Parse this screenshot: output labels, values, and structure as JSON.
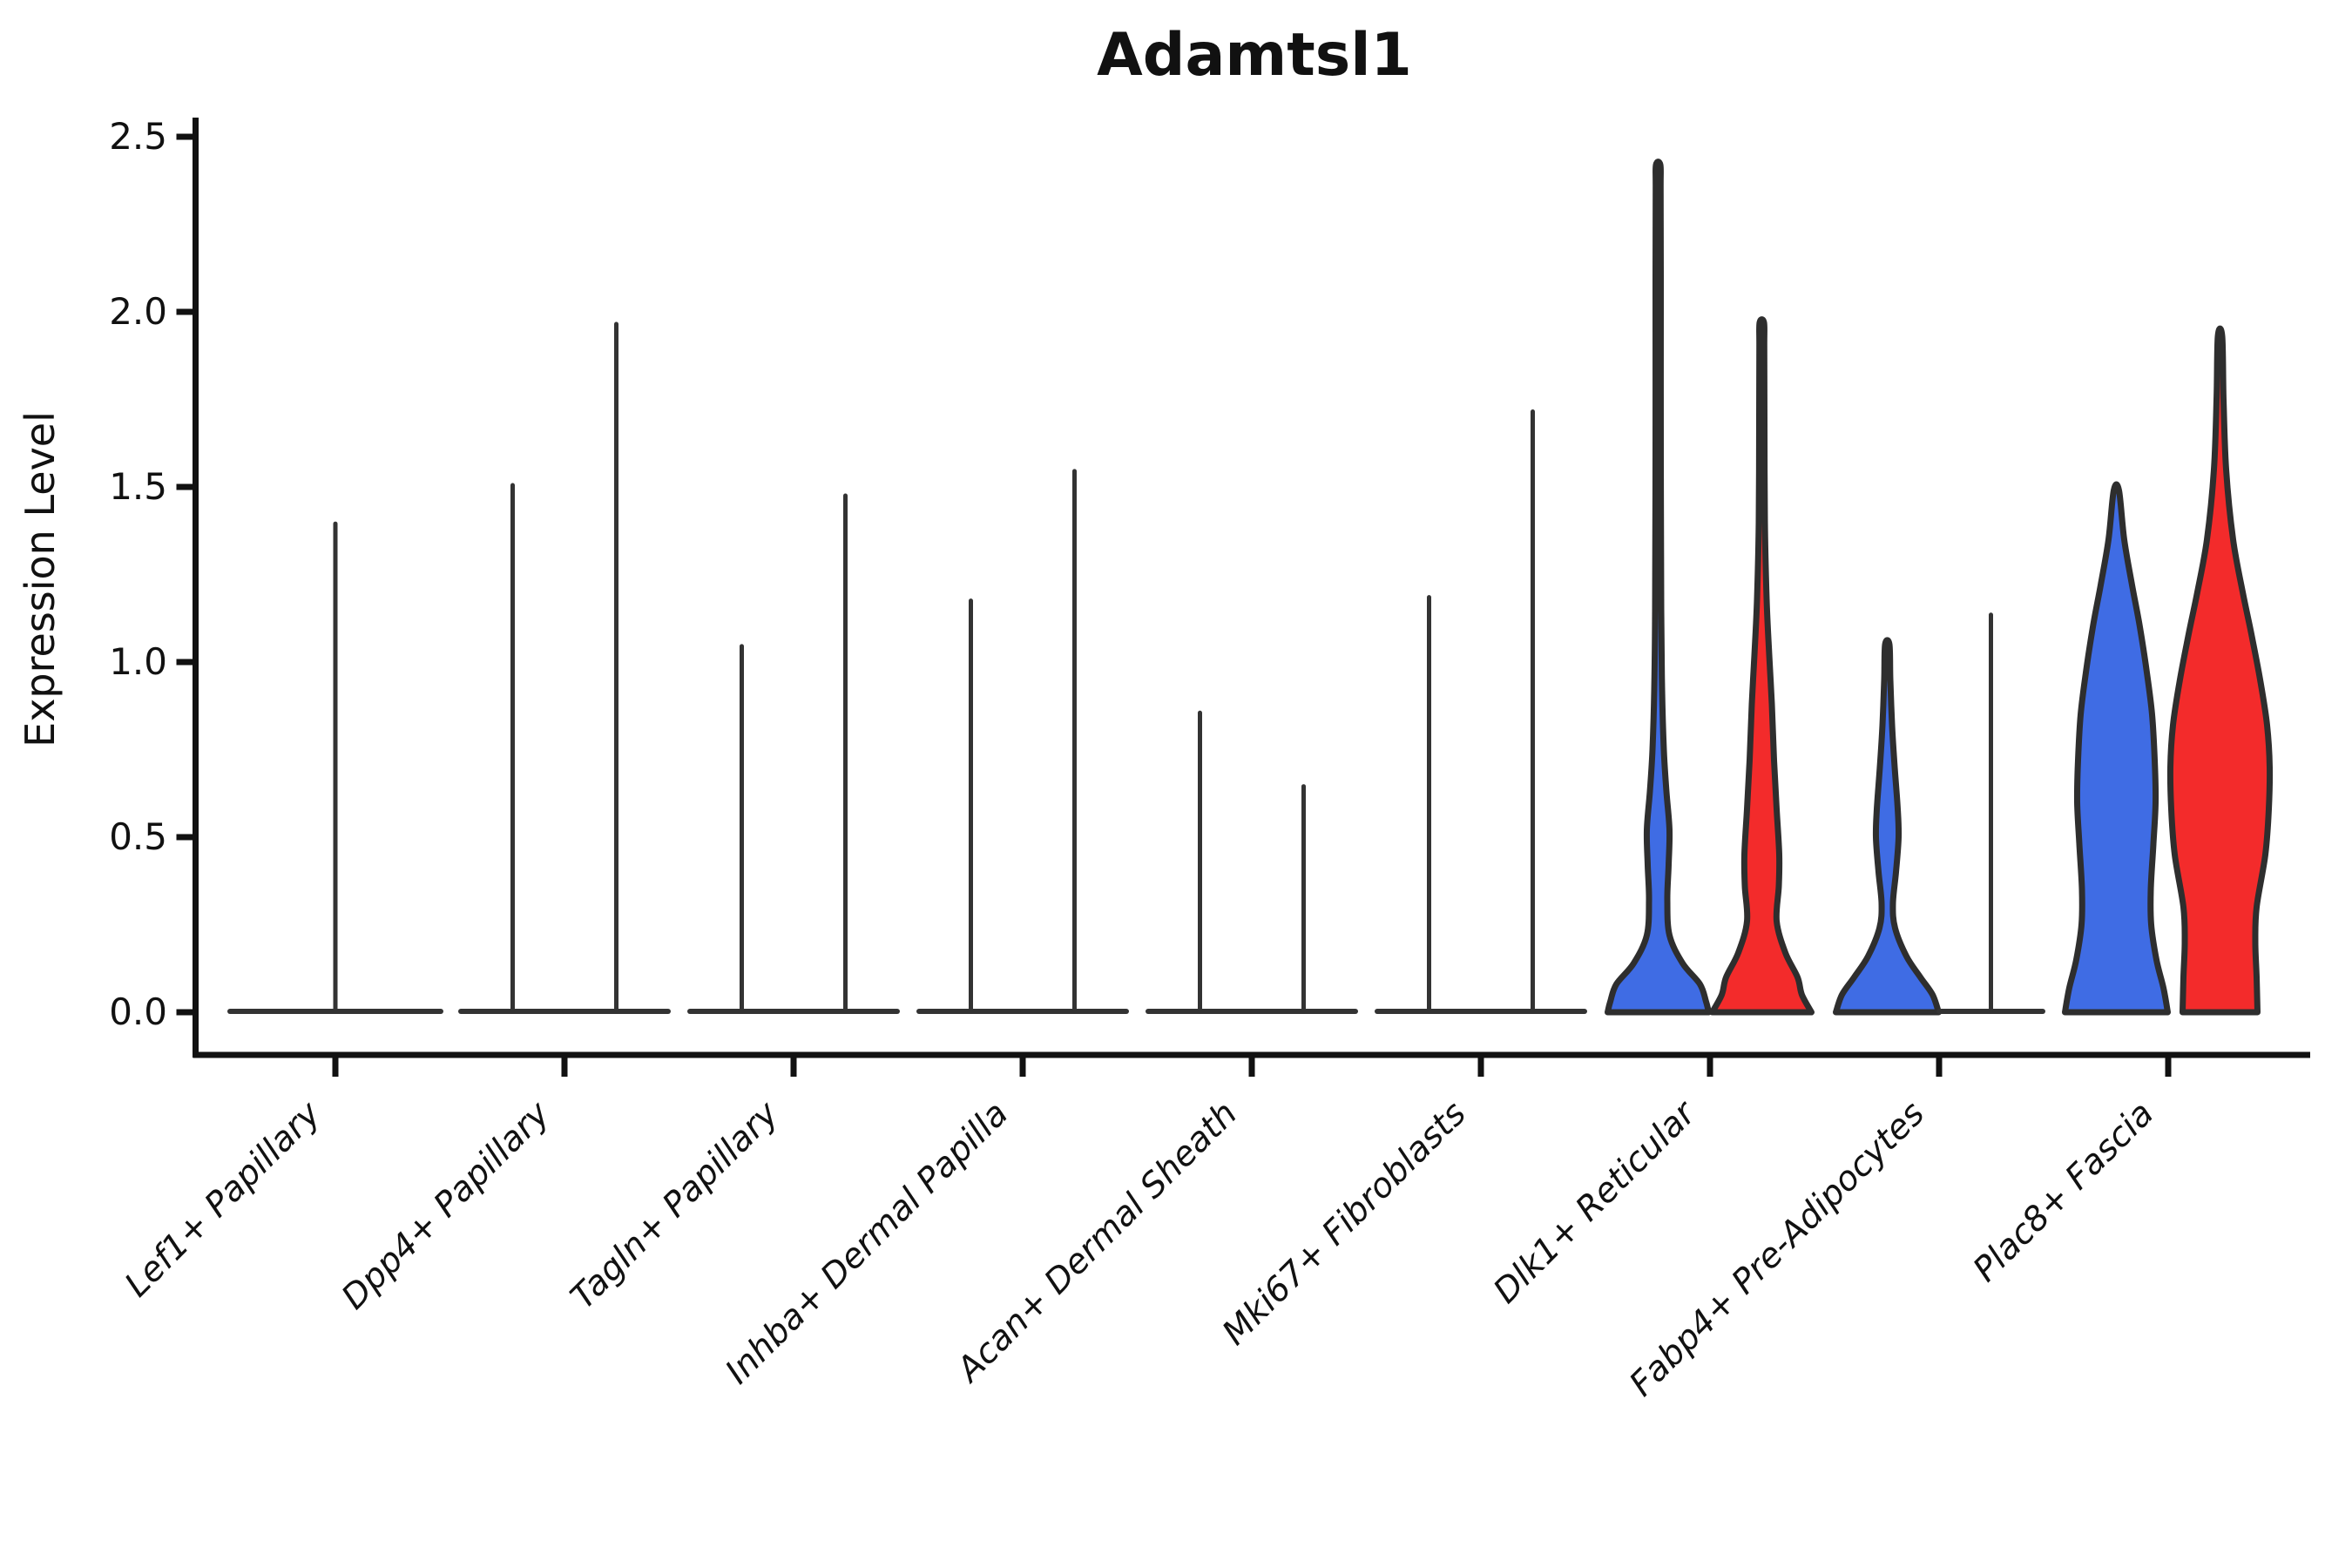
{
  "chart_data": {
    "type": "violin",
    "title": "Adamtsl1",
    "ylabel": "Expression Level",
    "xlabel": "",
    "ytick_labels": [
      "0.0",
      "0.5",
      "1.0",
      "1.5",
      "2.0",
      "2.5"
    ],
    "ytick_values": [
      0.0,
      0.5,
      1.0,
      1.5,
      2.0,
      2.5
    ],
    "ylim": [
      -0.12,
      2.56
    ],
    "x_tick_rotation": 45,
    "grid": false,
    "legend": null,
    "colors": {
      "blue": "#3f6ce4",
      "red": "#f32b2b",
      "ink": "#111111",
      "violin_edge": "#2e2e2e",
      "spike": "#333333"
    },
    "categories": [
      "Lef1+ Papillary",
      "Dpp4+ Papillary",
      "Tagln+ Papillary",
      "Inhba+ Dermal Papilla",
      "Acan+ Dermal Sheath",
      "Mki67+ Fibroblasts",
      "Dlk1+ Reticular",
      "Fabp4+ Pre-Adipocytes",
      "Plac8+ Fascia"
    ],
    "groups": [
      {
        "category": "Lef1+ Papillary",
        "violins": [
          {
            "style": "spike",
            "color": "spike",
            "offset": 0,
            "max": 1.4,
            "base_halfwidth": 121
          }
        ]
      },
      {
        "category": "Dpp4+ Papillary",
        "violins": [
          {
            "style": "spike",
            "color": "spike",
            "offset": -59.5,
            "max": 1.51,
            "base_halfwidth": 59.5
          },
          {
            "style": "spike",
            "color": "spike",
            "offset": 59.5,
            "max": 1.97,
            "base_halfwidth": 59.5
          }
        ]
      },
      {
        "category": "Tagln+ Papillary",
        "violins": [
          {
            "style": "spike",
            "color": "spike",
            "offset": -59.5,
            "max": 1.05,
            "base_halfwidth": 59.5
          },
          {
            "style": "spike",
            "color": "spike",
            "offset": 59.5,
            "max": 1.48,
            "base_halfwidth": 59.5
          }
        ]
      },
      {
        "category": "Inhba+ Dermal Papilla",
        "violins": [
          {
            "style": "spike",
            "color": "spike",
            "offset": -59.5,
            "max": 1.18,
            "base_halfwidth": 59.5
          },
          {
            "style": "spike",
            "color": "spike",
            "offset": 59.5,
            "max": 1.55,
            "base_halfwidth": 59.5
          }
        ]
      },
      {
        "category": "Acan+ Dermal Sheath",
        "violins": [
          {
            "style": "spike",
            "color": "spike",
            "offset": -59.5,
            "max": 0.86,
            "base_halfwidth": 59.5
          },
          {
            "style": "spike",
            "color": "spike",
            "offset": 59.5,
            "max": 0.65,
            "base_halfwidth": 59.5
          }
        ]
      },
      {
        "category": "Mki67+ Fibroblasts",
        "violins": [
          {
            "style": "spike",
            "color": "spike",
            "offset": -59.5,
            "max": 1.19,
            "base_halfwidth": 59.5
          },
          {
            "style": "spike",
            "color": "spike",
            "offset": 59.5,
            "max": 1.72,
            "base_halfwidth": 59.5
          }
        ]
      },
      {
        "category": "Dlk1+ Reticular",
        "violins": [
          {
            "style": "violin",
            "color": "blue",
            "offset": -59.5,
            "max": 2.42,
            "profile": [
              [
                0,
                58
              ],
              [
                0.03,
                55
              ],
              [
                0.08,
                48
              ],
              [
                0.14,
                28
              ],
              [
                0.22,
                13
              ],
              [
                0.32,
                10.5
              ],
              [
                0.42,
                12
              ],
              [
                0.52,
                13
              ],
              [
                0.63,
                9.5
              ],
              [
                0.75,
                6.5
              ],
              [
                0.92,
                4.5
              ],
              [
                1.15,
                3.5
              ],
              [
                1.6,
                3
              ],
              [
                2.1,
                3
              ],
              [
                2.35,
                2.8
              ],
              [
                2.42,
                2.5
              ]
            ]
          },
          {
            "style": "violin",
            "color": "red",
            "offset": 59.5,
            "max": 1.97,
            "profile": [
              [
                0,
                57
              ],
              [
                0.05,
                46
              ],
              [
                0.1,
                41
              ],
              [
                0.17,
                27
              ],
              [
                0.26,
                17
              ],
              [
                0.36,
                19.5
              ],
              [
                0.45,
                20
              ],
              [
                0.58,
                17
              ],
              [
                0.72,
                14
              ],
              [
                0.88,
                11.5
              ],
              [
                1.02,
                8.5
              ],
              [
                1.18,
                5.5
              ],
              [
                1.4,
                3.5
              ],
              [
                1.7,
                3
              ],
              [
                1.9,
                2.8
              ],
              [
                1.97,
                2.5
              ]
            ]
          }
        ]
      },
      {
        "category": "Fabp4+ Pre-Adipocytes",
        "violins": [
          {
            "style": "violin",
            "color": "blue",
            "offset": -59.5,
            "max": 1.05,
            "profile": [
              [
                0,
                59
              ],
              [
                0.05,
                52
              ],
              [
                0.1,
                38
              ],
              [
                0.16,
                22
              ],
              [
                0.24,
                9
              ],
              [
                0.31,
                6.5
              ],
              [
                0.4,
                10
              ],
              [
                0.5,
                13
              ],
              [
                0.58,
                12
              ],
              [
                0.7,
                8.5
              ],
              [
                0.82,
                5.5
              ],
              [
                0.95,
                3.5
              ],
              [
                1.05,
                2.5
              ]
            ]
          },
          {
            "style": "spike",
            "color": "spike",
            "offset": 59.5,
            "max": 1.14,
            "base_halfwidth": 59.5
          }
        ]
      },
      {
        "category": "Plac8+ Fascia",
        "violins": [
          {
            "style": "violin",
            "color": "blue",
            "offset": -59.5,
            "max": 1.49,
            "profile": [
              [
                0,
                59
              ],
              [
                0.07,
                54
              ],
              [
                0.15,
                46
              ],
              [
                0.25,
                40
              ],
              [
                0.35,
                39.5
              ],
              [
                0.48,
                42.5
              ],
              [
                0.6,
                45
              ],
              [
                0.72,
                44
              ],
              [
                0.85,
                41
              ],
              [
                0.97,
                35
              ],
              [
                1.1,
                27
              ],
              [
                1.22,
                18
              ],
              [
                1.35,
                9
              ],
              [
                1.49,
                3
              ]
            ]
          },
          {
            "style": "violin",
            "color": "red",
            "offset": 59.5,
            "max": 1.93,
            "profile": [
              [
                0,
                43
              ],
              [
                0.1,
                42
              ],
              [
                0.2,
                40.5
              ],
              [
                0.3,
                42
              ],
              [
                0.45,
                52
              ],
              [
                0.58,
                56
              ],
              [
                0.7,
                57
              ],
              [
                0.82,
                54
              ],
              [
                0.95,
                46
              ],
              [
                1.08,
                36
              ],
              [
                1.2,
                26
              ],
              [
                1.35,
                15
              ],
              [
                1.55,
                7
              ],
              [
                1.75,
                4
              ],
              [
                1.93,
                2.5
              ]
            ]
          }
        ]
      }
    ]
  }
}
